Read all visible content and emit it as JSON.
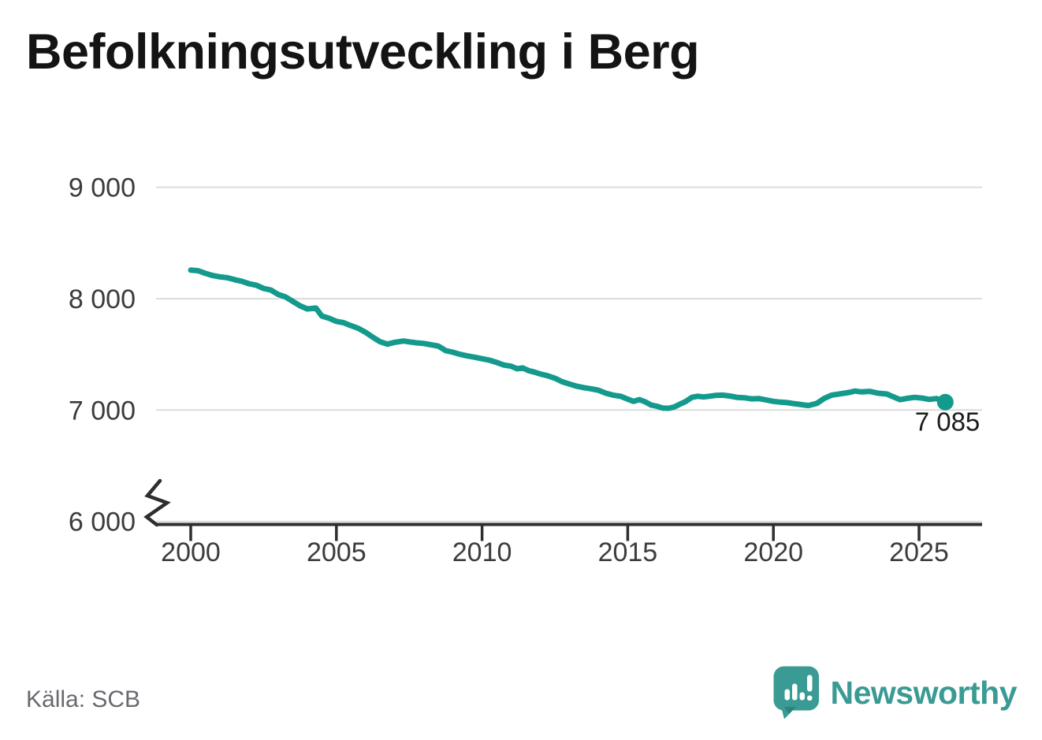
{
  "title": "Befolkningsutveckling i Berg",
  "footer": {
    "source": "Källa: SCB",
    "brand": "Newsworthy"
  },
  "colors": {
    "line": "#149a8d",
    "end_dot": "#149a8d",
    "grid": "#dcdcdc",
    "axis": "#2e2e2e",
    "logo_teal": "#3a9b94",
    "logo_bar_fill": "#ffffff"
  },
  "chart_data": {
    "type": "line",
    "title": "Befolkningsutveckling i Berg",
    "xlabel": "",
    "ylabel": "",
    "grid": "horizontal",
    "legend": "none",
    "axis_break_at_bottom": true,
    "x_range_years": [
      1998.8,
      2027.2
    ],
    "ylim_displayed": [
      6000,
      9000
    ],
    "y_ticks": [
      {
        "value": 9000,
        "label": "9 000"
      },
      {
        "value": 8000,
        "label": "8 000"
      },
      {
        "value": 7000,
        "label": "7 000"
      },
      {
        "value": 6000,
        "label": "6 000"
      }
    ],
    "x_ticks": [
      {
        "value": 2000,
        "label": "2000"
      },
      {
        "value": 2005,
        "label": "2005"
      },
      {
        "value": 2010,
        "label": "2010"
      },
      {
        "value": 2015,
        "label": "2015"
      },
      {
        "value": 2020,
        "label": "2020"
      },
      {
        "value": 2025,
        "label": "2025"
      }
    ],
    "end_label": {
      "x": 2025.9,
      "value": 7085,
      "label": "7 085"
    },
    "series": [
      {
        "name": "Befolkningsutveckling i Berg",
        "color": "#149a8d",
        "points": [
          [
            2000.0,
            8270
          ],
          [
            2000.25,
            8265
          ],
          [
            2000.5,
            8242
          ],
          [
            2000.75,
            8222
          ],
          [
            2001.0,
            8210
          ],
          [
            2001.25,
            8202
          ],
          [
            2001.5,
            8185
          ],
          [
            2001.75,
            8170
          ],
          [
            2002.0,
            8148
          ],
          [
            2002.25,
            8135
          ],
          [
            2002.5,
            8106
          ],
          [
            2002.75,
            8092
          ],
          [
            2003.0,
            8052
          ],
          [
            2003.25,
            8030
          ],
          [
            2003.5,
            7990
          ],
          [
            2003.75,
            7950
          ],
          [
            2004.0,
            7922
          ],
          [
            2004.3,
            7930
          ],
          [
            2004.5,
            7858
          ],
          [
            2004.75,
            7838
          ],
          [
            2005.0,
            7810
          ],
          [
            2005.25,
            7798
          ],
          [
            2005.5,
            7772
          ],
          [
            2005.75,
            7748
          ],
          [
            2006.0,
            7712
          ],
          [
            2006.25,
            7668
          ],
          [
            2006.5,
            7628
          ],
          [
            2006.75,
            7606
          ],
          [
            2007.0,
            7622
          ],
          [
            2007.3,
            7634
          ],
          [
            2007.5,
            7626
          ],
          [
            2007.75,
            7618
          ],
          [
            2008.0,
            7612
          ],
          [
            2008.25,
            7600
          ],
          [
            2008.5,
            7588
          ],
          [
            2008.75,
            7548
          ],
          [
            2009.0,
            7533
          ],
          [
            2009.25,
            7514
          ],
          [
            2009.5,
            7500
          ],
          [
            2009.75,
            7488
          ],
          [
            2010.0,
            7475
          ],
          [
            2010.25,
            7462
          ],
          [
            2010.5,
            7442
          ],
          [
            2010.75,
            7418
          ],
          [
            2011.0,
            7408
          ],
          [
            2011.2,
            7385
          ],
          [
            2011.4,
            7392
          ],
          [
            2011.6,
            7368
          ],
          [
            2011.8,
            7355
          ],
          [
            2012.0,
            7338
          ],
          [
            2012.25,
            7322
          ],
          [
            2012.5,
            7300
          ],
          [
            2012.75,
            7268
          ],
          [
            2013.0,
            7248
          ],
          [
            2013.25,
            7228
          ],
          [
            2013.5,
            7215
          ],
          [
            2013.75,
            7205
          ],
          [
            2014.0,
            7192
          ],
          [
            2014.25,
            7165
          ],
          [
            2014.5,
            7148
          ],
          [
            2014.75,
            7138
          ],
          [
            2015.0,
            7112
          ],
          [
            2015.2,
            7092
          ],
          [
            2015.4,
            7108
          ],
          [
            2015.6,
            7088
          ],
          [
            2015.8,
            7060
          ],
          [
            2016.0,
            7048
          ],
          [
            2016.2,
            7032
          ],
          [
            2016.4,
            7030
          ],
          [
            2016.6,
            7042
          ],
          [
            2016.8,
            7068
          ],
          [
            2017.0,
            7092
          ],
          [
            2017.2,
            7128
          ],
          [
            2017.4,
            7138
          ],
          [
            2017.6,
            7132
          ],
          [
            2017.8,
            7138
          ],
          [
            2018.0,
            7145
          ],
          [
            2018.25,
            7148
          ],
          [
            2018.5,
            7140
          ],
          [
            2018.75,
            7128
          ],
          [
            2019.0,
            7125
          ],
          [
            2019.25,
            7115
          ],
          [
            2019.5,
            7118
          ],
          [
            2019.75,
            7105
          ],
          [
            2020.0,
            7092
          ],
          [
            2020.25,
            7085
          ],
          [
            2020.5,
            7080
          ],
          [
            2020.75,
            7070
          ],
          [
            2021.0,
            7062
          ],
          [
            2021.2,
            7055
          ],
          [
            2021.5,
            7075
          ],
          [
            2021.75,
            7120
          ],
          [
            2022.0,
            7148
          ],
          [
            2022.3,
            7160
          ],
          [
            2022.6,
            7172
          ],
          [
            2022.8,
            7185
          ],
          [
            2023.0,
            7178
          ],
          [
            2023.3,
            7182
          ],
          [
            2023.6,
            7165
          ],
          [
            2023.9,
            7158
          ],
          [
            2024.1,
            7135
          ],
          [
            2024.35,
            7108
          ],
          [
            2024.6,
            7120
          ],
          [
            2024.85,
            7128
          ],
          [
            2025.1,
            7122
          ],
          [
            2025.35,
            7110
          ],
          [
            2025.6,
            7118
          ],
          [
            2025.9,
            7085
          ]
        ]
      }
    ]
  }
}
